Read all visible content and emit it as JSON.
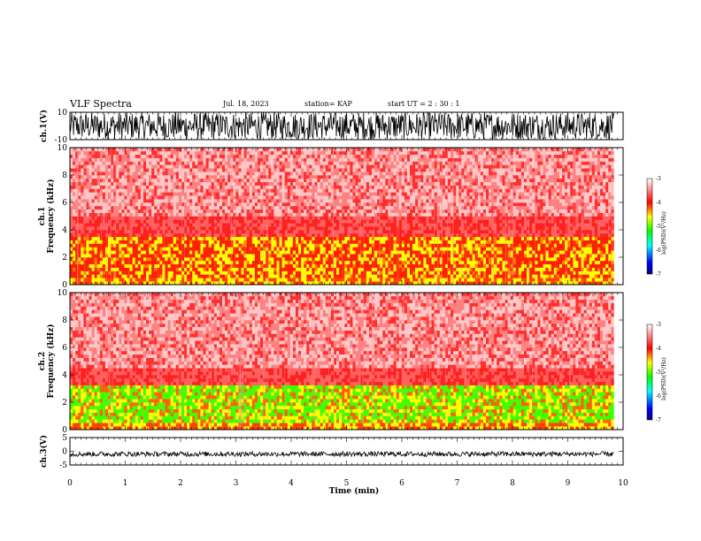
{
  "header": {
    "title": "VLF Spectra",
    "date": "Jul. 18, 2023",
    "station": "station= KAP",
    "start_ut": "start  UT  =   2  : 30 : 1"
  },
  "chart_data": [
    {
      "type": "line",
      "name": "ch1-waveform",
      "ylabel": "ch.1(V)",
      "ylim": [
        -10,
        10
      ],
      "yticks": [
        "10",
        "-10"
      ],
      "xlim": [
        0,
        10
      ],
      "data_extent_min": 9.83,
      "note_values": "dense waveform, envelope approximately -10 to 10 V"
    },
    {
      "type": "heatmap",
      "name": "ch1-spectrogram",
      "ylabel": "ch.1\nFrequency (kHz)",
      "ylim": [
        0,
        10
      ],
      "yticks": [
        "0",
        "2",
        "4",
        "6",
        "8",
        "10"
      ],
      "xlim": [
        0,
        10
      ],
      "colorbar": {
        "label": "log(PSD)(V²/Hz)",
        "range": [
          -7,
          -3
        ],
        "ticks": [
          "-3",
          "-4",
          "-5",
          "-6",
          "-7"
        ],
        "colors": [
          "#00007f",
          "#0000ff",
          "#00ffff",
          "#00ff00",
          "#ffff00",
          "#ff0000",
          "#ffffff"
        ]
      }
    },
    {
      "type": "heatmap",
      "name": "ch2-spectrogram",
      "ylabel": "ch.2\nFrequency (kHz)",
      "ylim": [
        0,
        10
      ],
      "yticks": [
        "0",
        "2",
        "4",
        "6",
        "8",
        "10"
      ],
      "xlim": [
        0,
        10
      ],
      "colorbar": {
        "label": "log(PSD)(V²/Hz)",
        "range": [
          -7,
          -3
        ],
        "ticks": [
          "-3",
          "-4",
          "-5",
          "-6",
          "-7"
        ],
        "colors": [
          "#00007f",
          "#0000ff",
          "#00ffff",
          "#00ff00",
          "#ffff00",
          "#ff0000",
          "#ffffff"
        ]
      }
    },
    {
      "type": "line",
      "name": "ch3-waveform",
      "ylabel": "ch.3(V)",
      "ylim": [
        -5,
        5
      ],
      "yticks": [
        "5",
        "0",
        "-5"
      ],
      "xlim": [
        0,
        10
      ],
      "xticks": [
        "0",
        "1",
        "2",
        "3",
        "4",
        "5",
        "6",
        "7",
        "8",
        "9",
        "10"
      ],
      "xlabel": "Time (min)",
      "data_extent_min": 9.83,
      "note_values": "near-constant band around -1 V"
    }
  ]
}
